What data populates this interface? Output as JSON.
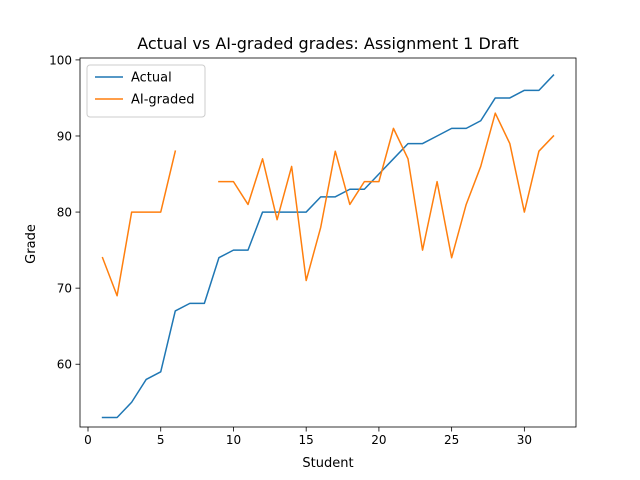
{
  "chart_data": {
    "type": "line",
    "title": "Actual vs AI-graded grades: Assignment 1 Draft",
    "xlabel": "Student",
    "ylabel": "Grade",
    "xlim": [
      -0.55,
      33.55
    ],
    "ylim": [
      51.75,
      100.25
    ],
    "xticks": [
      0,
      5,
      10,
      15,
      20,
      25,
      30
    ],
    "yticks": [
      60,
      70,
      80,
      90,
      100
    ],
    "grid": false,
    "legend_position": "top-left",
    "x": [
      1,
      2,
      3,
      4,
      5,
      6,
      7,
      8,
      9,
      10,
      11,
      12,
      13,
      14,
      15,
      16,
      17,
      18,
      19,
      20,
      21,
      22,
      23,
      24,
      25,
      26,
      27,
      28,
      29,
      30,
      31,
      32
    ],
    "series": [
      {
        "name": "Actual",
        "color": "#1f77b4",
        "values": [
          53,
          53,
          55,
          58,
          59,
          67,
          68,
          68,
          74,
          75,
          75,
          80,
          80,
          80,
          80,
          82,
          82,
          83,
          83,
          85,
          87,
          89,
          89,
          90,
          91,
          91,
          92,
          95,
          95,
          96,
          96,
          98
        ]
      },
      {
        "name": "AI-graded",
        "color": "#ff7f0e",
        "values": [
          74,
          69,
          80,
          80,
          80,
          88,
          null,
          null,
          84,
          84,
          81,
          87,
          79,
          86,
          71,
          78,
          88,
          81,
          84,
          84,
          91,
          87,
          75,
          84,
          74,
          81,
          86,
          93,
          89,
          80,
          88,
          90
        ]
      }
    ]
  }
}
